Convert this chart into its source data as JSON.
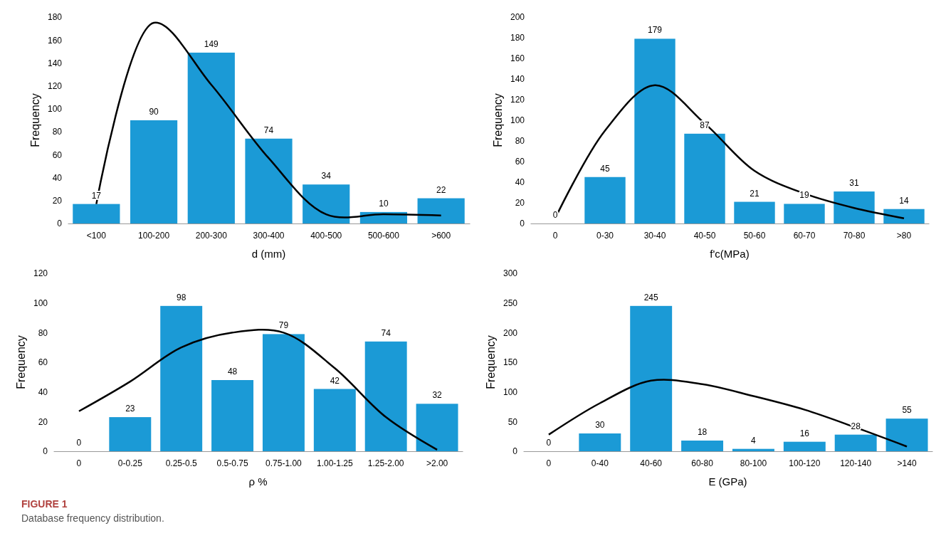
{
  "chart_data": [
    {
      "type": "bar",
      "xlabel": "d (mm)",
      "ylabel": "Frequency",
      "categories": [
        "<100",
        "100-200",
        "200-300",
        "300-400",
        "400-500",
        "500-600",
        ">600"
      ],
      "ylim": [
        0,
        180
      ],
      "yticks": [
        0,
        20,
        40,
        60,
        80,
        100,
        120,
        140,
        160,
        180
      ],
      "series": [
        {
          "type": "bar",
          "color": "#1b9ad6",
          "values": [
            17,
            90,
            149,
            74,
            34,
            10,
            22
          ],
          "value_labels": [
            "17",
            "90",
            "149",
            "74",
            "34",
            "10",
            "22"
          ]
        },
        {
          "type": "line",
          "color": "#000000",
          "values": [
            17,
            175,
            121,
            57,
            8,
            8,
            7
          ]
        }
      ]
    },
    {
      "type": "bar",
      "xlabel": "f'c(MPa)",
      "ylabel": "Frequency",
      "categories": [
        "0",
        "0-30",
        "30-40",
        "40-50",
        "50-60",
        "60-70",
        "70-80",
        ">80"
      ],
      "ylim": [
        0,
        200
      ],
      "yticks": [
        0,
        20,
        40,
        60,
        80,
        100,
        120,
        140,
        160,
        180,
        200
      ],
      "series": [
        {
          "type": "bar",
          "color": "#1b9ad6",
          "values": [
            0,
            45,
            179,
            87,
            21,
            19,
            31,
            14
          ],
          "value_labels": [
            "0",
            "45",
            "179",
            "87",
            "21",
            "19",
            "31",
            "14"
          ]
        },
        {
          "type": "line",
          "color": "#000000",
          "values": [
            5,
            90,
            134,
            97,
            51,
            29,
            15,
            5
          ]
        }
      ]
    },
    {
      "type": "bar",
      "xlabel": "ρ %",
      "ylabel": "Frequency",
      "categories": [
        "0",
        "0-0.25",
        "0.25-0.5",
        "0.5-0.75",
        "0.75-1.00",
        "1.00-1.25",
        "1.25-2.00",
        ">2.00"
      ],
      "ylim": [
        0,
        120
      ],
      "yticks": [
        0,
        20,
        40,
        60,
        80,
        100,
        120
      ],
      "series": [
        {
          "type": "bar",
          "color": "#1b9ad6",
          "values": [
            0,
            23,
            98,
            48,
            79,
            42,
            74,
            32
          ],
          "value_labels": [
            "0",
            "23",
            "98",
            "48",
            "79",
            "42",
            "74",
            "32"
          ]
        },
        {
          "type": "line",
          "color": "#000000",
          "values": [
            27,
            47,
            70,
            80,
            80,
            56,
            23,
            1
          ]
        }
      ]
    },
    {
      "type": "bar",
      "xlabel": "E (GPa)",
      "ylabel": "Frequency",
      "categories": [
        "0",
        "0-40",
        "40-60",
        "60-80",
        "80-100",
        "100-120",
        "120-140",
        ">140"
      ],
      "ylim": [
        0,
        300
      ],
      "yticks": [
        0,
        50,
        100,
        150,
        200,
        250,
        300
      ],
      "series": [
        {
          "type": "bar",
          "color": "#1b9ad6",
          "values": [
            0,
            30,
            245,
            18,
            4,
            16,
            28,
            55
          ],
          "value_labels": [
            "0",
            "30",
            "245",
            "18",
            "4",
            "16",
            "28",
            "55"
          ]
        },
        {
          "type": "line",
          "color": "#000000",
          "values": [
            28,
            81,
            119,
            113,
            93,
            70,
            40,
            8
          ]
        }
      ]
    },
    {
      "type": "other",
      "title": "FIGURE 1",
      "subtitle": "Database frequency distribution."
    }
  ]
}
